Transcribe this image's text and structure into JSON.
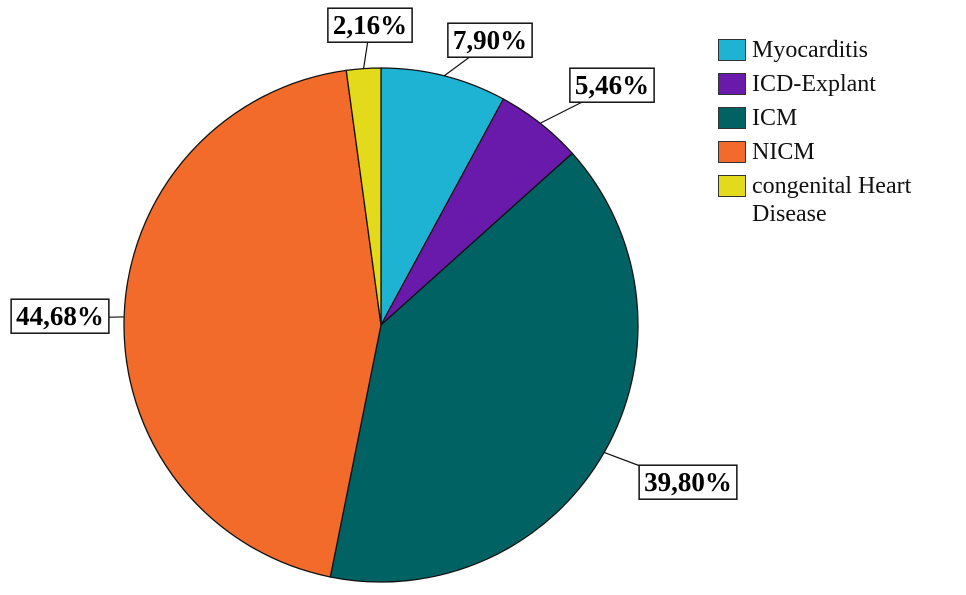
{
  "chart_data": {
    "type": "pie",
    "categories": [
      "Myocarditis",
      "ICD-Explant",
      "ICM",
      "NICM",
      "congenital Heart Disease"
    ],
    "values": [
      7.9,
      5.46,
      39.8,
      44.68,
      2.16
    ],
    "value_labels": [
      "7,90%",
      "5,46%",
      "39,80%",
      "44,68%",
      "2,16%"
    ],
    "colors": [
      "#1fb3d3",
      "#6a1aab",
      "#006262",
      "#f26b2b",
      "#e3da1c"
    ]
  }
}
